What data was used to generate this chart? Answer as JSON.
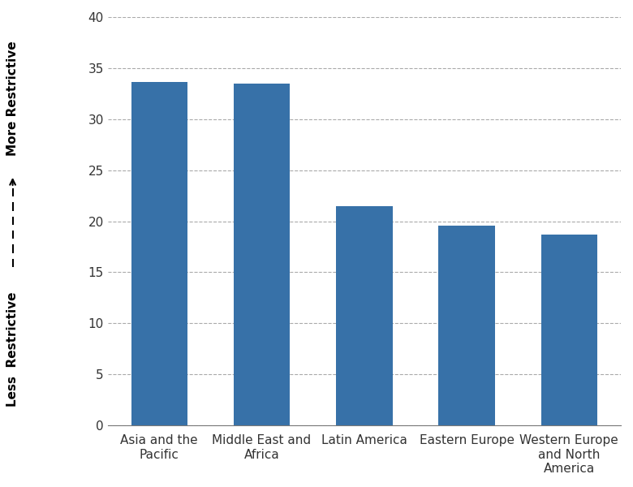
{
  "categories": [
    "Asia and the\nPacific",
    "Middle East and\nAfrica",
    "Latin America",
    "Eastern Europe",
    "Western Europe\nand North\nAmerica"
  ],
  "values": [
    33.6,
    33.5,
    21.5,
    19.6,
    18.7
  ],
  "bar_color": "#3771a8",
  "ylim": [
    0,
    40
  ],
  "yticks": [
    0,
    5,
    10,
    15,
    20,
    25,
    30,
    35,
    40
  ],
  "ylabel_top": "More Restrictive",
  "ylabel_bottom": "Less  Restrictive",
  "background_color": "#ffffff",
  "grid_color": "#aaaaaa",
  "tick_fontsize": 11,
  "label_fontsize": 11
}
